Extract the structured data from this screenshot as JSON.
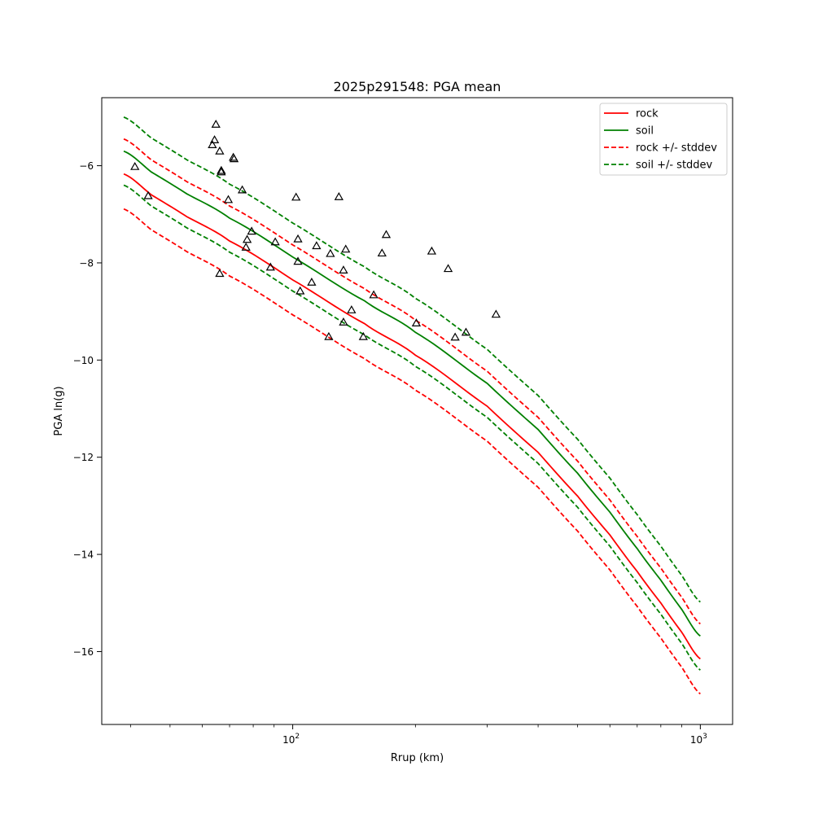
{
  "chart_data": {
    "type": "scatter",
    "title": "2025p291548: PGA mean",
    "xlabel": "Rrup (km)",
    "ylabel": "PGA ln(g)",
    "xscale": "log",
    "xlim": [
      34,
      1200
    ],
    "ylim": [
      -17.5,
      -4.6
    ],
    "x_ticks": [
      {
        "value": 100,
        "base": "10",
        "exp": "2"
      },
      {
        "value": 1000,
        "base": "10",
        "exp": "3"
      }
    ],
    "y_ticks": [
      -6,
      -8,
      -10,
      -12,
      -14,
      -16
    ],
    "y_tick_labels": [
      "−6",
      "−8",
      "−10",
      "−12",
      "−14",
      "−16"
    ],
    "grid": false,
    "legend_position": "top-right",
    "series": [
      {
        "name": "rock",
        "style": "solid",
        "color": "#ff0000",
        "x": [
          38.5,
          45,
          55,
          70,
          100,
          150,
          200,
          300,
          400,
          500,
          600,
          700,
          800,
          900,
          1000
        ],
        "y": [
          -6.17,
          -6.6,
          -7.05,
          -7.55,
          -8.35,
          -9.25,
          -9.9,
          -10.95,
          -11.9,
          -12.8,
          -13.6,
          -14.35,
          -15.0,
          -15.6,
          -16.15
        ]
      },
      {
        "name": "soil",
        "style": "solid",
        "color": "#008000",
        "x": [
          38.5,
          45,
          55,
          70,
          100,
          150,
          200,
          300,
          400,
          500,
          600,
          700,
          800,
          900,
          1000
        ],
        "y": [
          -5.7,
          -6.13,
          -6.58,
          -7.08,
          -7.88,
          -8.78,
          -9.43,
          -10.48,
          -11.43,
          -12.33,
          -13.13,
          -13.88,
          -14.53,
          -15.13,
          -15.68
        ]
      },
      {
        "name": "rock +/- stddev",
        "style": "dashed",
        "color": "#ff0000",
        "bands": [
          {
            "x": [
              38.5,
              45,
              55,
              70,
              100,
              150,
              200,
              300,
              400,
              500,
              600,
              700,
              800,
              900,
              1000
            ],
            "y": [
              -5.45,
              -5.88,
              -6.33,
              -6.83,
              -7.63,
              -8.53,
              -9.18,
              -10.23,
              -11.18,
              -12.08,
              -12.88,
              -13.63,
              -14.28,
              -14.88,
              -15.43
            ]
          },
          {
            "x": [
              38.5,
              45,
              55,
              70,
              100,
              150,
              200,
              300,
              400,
              500,
              600,
              700,
              800,
              900,
              1000
            ],
            "y": [
              -6.89,
              -7.32,
              -7.77,
              -8.27,
              -9.07,
              -9.97,
              -10.62,
              -11.67,
              -12.62,
              -13.52,
              -14.32,
              -15.07,
              -15.72,
              -16.32,
              -16.87
            ]
          }
        ]
      },
      {
        "name": "soil +/- stddev",
        "style": "dashed",
        "color": "#008000",
        "bands": [
          {
            "x": [
              38.5,
              45,
              55,
              70,
              100,
              150,
              200,
              300,
              400,
              500,
              600,
              700,
              800,
              900,
              1000
            ],
            "y": [
              -5.0,
              -5.43,
              -5.88,
              -6.38,
              -7.18,
              -8.08,
              -8.73,
              -9.78,
              -10.73,
              -11.63,
              -12.43,
              -13.18,
              -13.83,
              -14.43,
              -14.98
            ]
          },
          {
            "x": [
              38.5,
              45,
              55,
              70,
              100,
              150,
              200,
              300,
              400,
              500,
              600,
              700,
              800,
              900,
              1000
            ],
            "y": [
              -6.4,
              -6.83,
              -7.28,
              -7.78,
              -8.58,
              -9.48,
              -10.13,
              -11.18,
              -12.13,
              -13.03,
              -13.83,
              -14.58,
              -15.23,
              -15.83,
              -16.38
            ]
          }
        ]
      }
    ],
    "observations": {
      "marker": "triangle",
      "color": "#000000",
      "points": [
        [
          41,
          -6.02
        ],
        [
          44.2,
          -6.62
        ],
        [
          63.5,
          -5.57
        ],
        [
          64.3,
          -5.47
        ],
        [
          64.8,
          -5.15
        ],
        [
          66.2,
          -5.7
        ],
        [
          66.8,
          -6.1
        ],
        [
          66.8,
          -6.13
        ],
        [
          66.2,
          -8.22
        ],
        [
          69.5,
          -6.7
        ],
        [
          71.5,
          -5.83
        ],
        [
          71.8,
          -5.86
        ],
        [
          75.2,
          -6.5
        ],
        [
          76.8,
          -7.68
        ],
        [
          77.3,
          -7.52
        ],
        [
          79.3,
          -7.35
        ],
        [
          88.2,
          -8.09
        ],
        [
          90.6,
          -7.57
        ],
        [
          101.9,
          -6.65
        ],
        [
          103,
          -7.51
        ],
        [
          103,
          -7.97
        ],
        [
          104.3,
          -8.58
        ],
        [
          111.3,
          -8.4
        ],
        [
          114.4,
          -7.65
        ],
        [
          122.6,
          -9.52
        ],
        [
          123.7,
          -7.81
        ],
        [
          129.8,
          -6.64
        ],
        [
          133.2,
          -9.22
        ],
        [
          133.2,
          -8.15
        ],
        [
          134.9,
          -7.72
        ],
        [
          139.4,
          -8.97
        ],
        [
          149,
          -9.52
        ],
        [
          158,
          -8.66
        ],
        [
          165.6,
          -7.8
        ],
        [
          169.6,
          -7.42
        ],
        [
          201,
          -9.24
        ],
        [
          219.3,
          -7.76
        ],
        [
          240.6,
          -8.12
        ],
        [
          250.3,
          -9.53
        ],
        [
          266.1,
          -9.43
        ],
        [
          315.3,
          -9.06
        ]
      ]
    }
  }
}
